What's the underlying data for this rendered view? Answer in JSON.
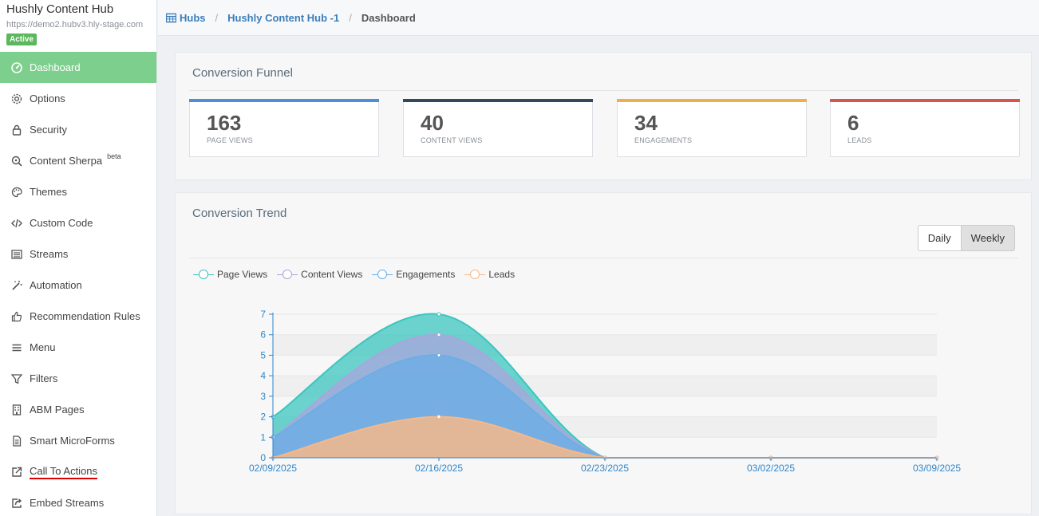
{
  "sidebar": {
    "title": "Hushly Content Hub",
    "url": "https://demo2.hubv3.hly-stage.com",
    "status": "Active",
    "items": [
      {
        "label": "Dashboard",
        "icon": "dashboard-icon",
        "active": true
      },
      {
        "label": "Options",
        "icon": "gear-icon"
      },
      {
        "label": "Security",
        "icon": "lock-icon"
      },
      {
        "label": "Content Sherpa",
        "icon": "compass-icon",
        "badge": "beta"
      },
      {
        "label": "Themes",
        "icon": "palette-icon"
      },
      {
        "label": "Custom Code",
        "icon": "code-icon"
      },
      {
        "label": "Streams",
        "icon": "list-icon"
      },
      {
        "label": "Automation",
        "icon": "magic-wand-icon"
      },
      {
        "label": "Recommendation Rules",
        "icon": "thumbs-up-icon"
      },
      {
        "label": "Menu",
        "icon": "hamburger-icon"
      },
      {
        "label": "Filters",
        "icon": "filter-icon"
      },
      {
        "label": "ABM Pages",
        "icon": "building-icon"
      },
      {
        "label": "Smart MicroForms",
        "icon": "document-icon"
      },
      {
        "label": "Call To Actions",
        "icon": "external-link-icon"
      },
      {
        "label": "Embed Streams",
        "icon": "share-icon"
      }
    ]
  },
  "breadcrumb": {
    "hubs": "Hubs",
    "hub": "Hushly Content Hub -1",
    "current": "Dashboard"
  },
  "funnel": {
    "title": "Conversion Funnel",
    "stats": [
      {
        "value": "163",
        "label": "PAGE VIEWS",
        "color": "#4a90d9"
      },
      {
        "value": "40",
        "label": "CONTENT VIEWS",
        "color": "#34495e"
      },
      {
        "value": "34",
        "label": "ENGAGEMENTS",
        "color": "#f0ad4e"
      },
      {
        "value": "6",
        "label": "LEADS",
        "color": "#d9534f"
      }
    ]
  },
  "trend": {
    "title": "Conversion Trend",
    "toggle": {
      "daily": "Daily",
      "weekly": "Weekly"
    }
  },
  "chart_data": {
    "type": "area",
    "x": [
      "02/09/2025",
      "02/16/2025",
      "02/23/2025",
      "03/02/2025",
      "03/09/2025"
    ],
    "series": [
      {
        "name": "Page Views",
        "values": [
          2,
          7,
          0,
          0,
          0
        ],
        "color": "#3cc5c0"
      },
      {
        "name": "Content Views",
        "values": [
          1,
          6,
          0,
          0,
          0
        ],
        "color": "#a9a6dc"
      },
      {
        "name": "Engagements",
        "values": [
          1,
          5,
          0,
          0,
          0
        ],
        "color": "#6aaee6"
      },
      {
        "name": "Leads",
        "values": [
          0,
          2,
          0,
          0,
          0
        ],
        "color": "#f5b88a"
      }
    ],
    "ylim": [
      0,
      7
    ],
    "yticks": [
      "0",
      "1",
      "2",
      "3",
      "4",
      "5",
      "6",
      "7"
    ],
    "grid": true,
    "legend": "top-left"
  }
}
